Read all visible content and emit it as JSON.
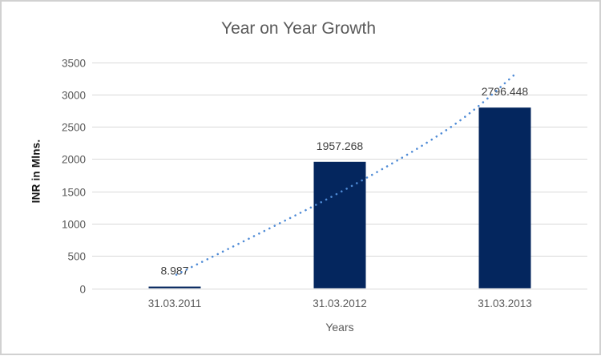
{
  "chart_data": {
    "type": "bar",
    "title": "Year on Year Growth",
    "xlabel": "Years",
    "ylabel": "INR in Mlns.",
    "categories": [
      "31.03.2011",
      "31.03.2012",
      "31.03.2013"
    ],
    "values": [
      8.987,
      1957.268,
      2796.448
    ],
    "data_labels": [
      "8.987",
      "1957.268",
      "2796.448"
    ],
    "ylim": [
      0,
      3500
    ],
    "ytick_step": 500,
    "ytick_labels": [
      "0",
      "500",
      "1000",
      "1500",
      "2000",
      "2500",
      "3000",
      "3500"
    ],
    "grid": true,
    "legend": false,
    "trendline": {
      "style": "dotted",
      "color": "#4F8BD6",
      "points": [
        {
          "x": 1.01,
          "y": 210
        },
        {
          "x": 2.02,
          "y": 1510
        },
        {
          "x": 2.67,
          "y": 2490
        },
        {
          "x": 3.07,
          "y": 3330
        }
      ]
    },
    "colors": {
      "bar": "#04265E",
      "grid": "#D9D9D9",
      "title_text": "#595959",
      "tick_text": "#595959",
      "data_label_text": "#3F3F3F",
      "axis_title_text": "#141414",
      "frame_border": "#D1D1D1",
      "background": "#FFFFFF"
    }
  }
}
